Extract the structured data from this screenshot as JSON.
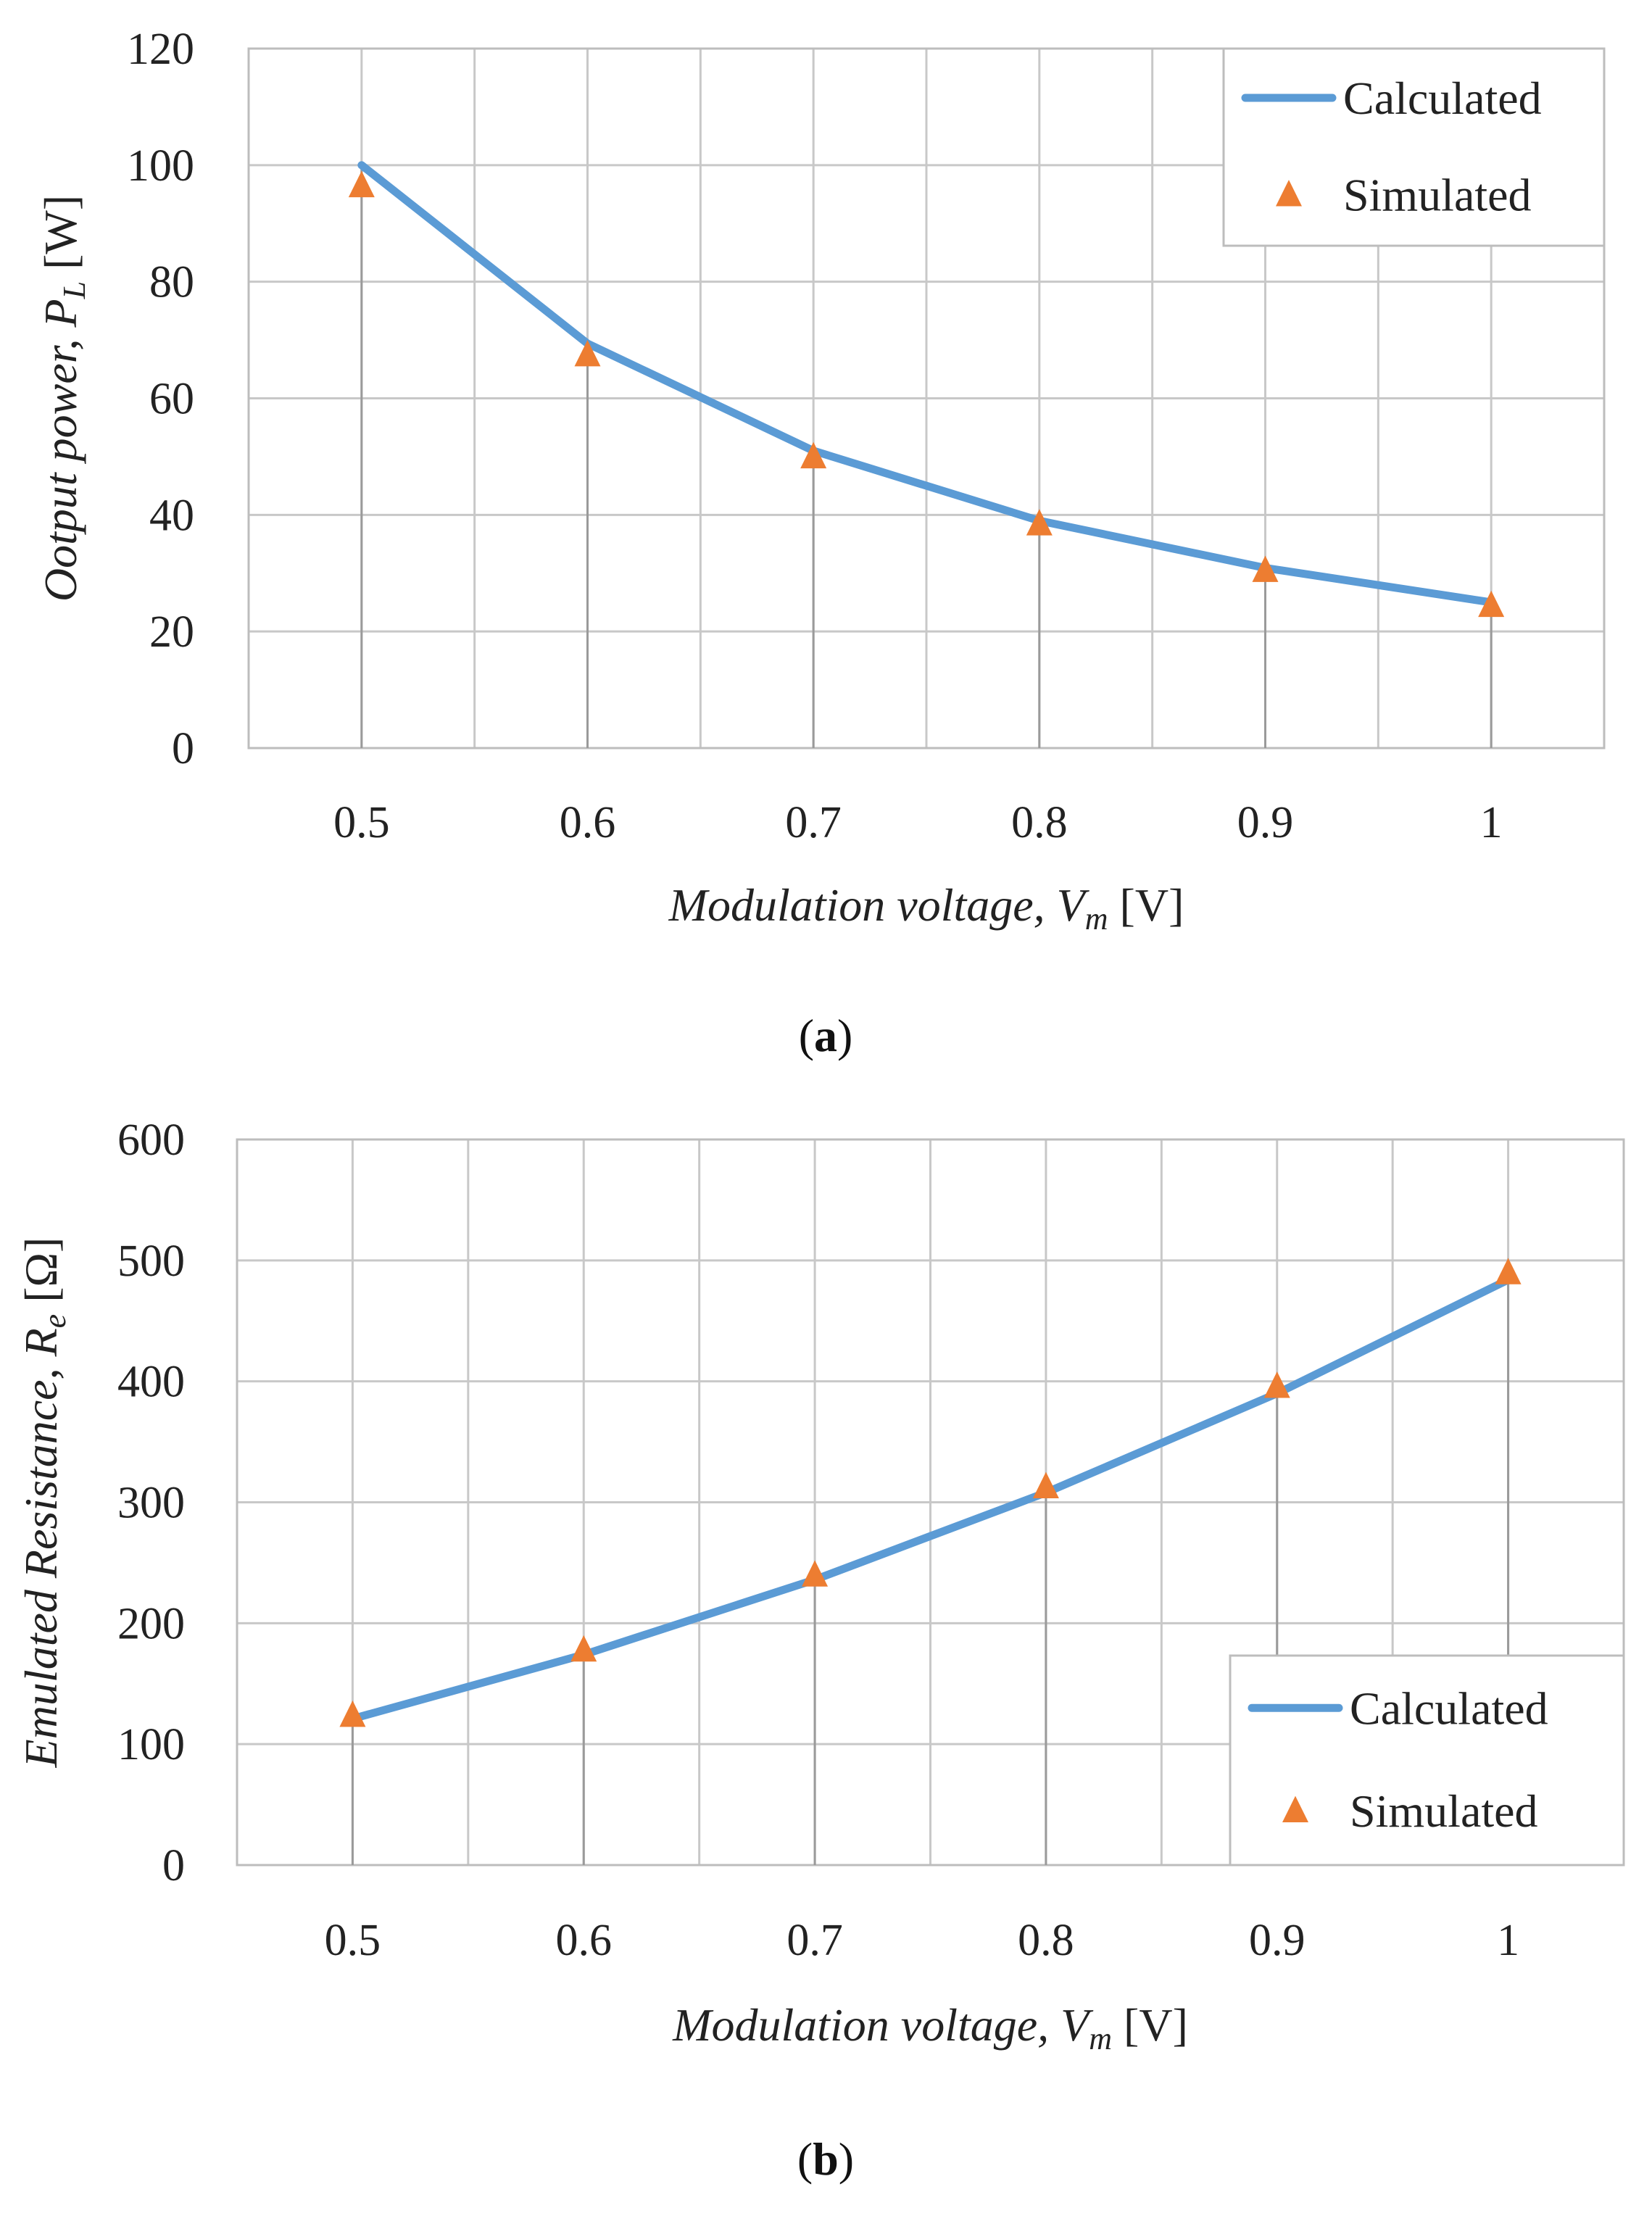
{
  "colors": {
    "calculated": "#5b9bd5",
    "simulated": "#ed7d31"
  },
  "chart_data": [
    {
      "type": "line",
      "panel_label": "a",
      "xlabel": {
        "main": "Modulation voltage, V",
        "sub": "m",
        "unit": " [V]"
      },
      "ylabel": {
        "main": "Ootput power,  P",
        "sub": "L",
        "unit": " [W]"
      },
      "categories": [
        "0.5",
        "0.6",
        "0.7",
        "0.8",
        "0.9",
        "1"
      ],
      "x": [
        0.5,
        0.6,
        0.7,
        0.8,
        0.9,
        1.0
      ],
      "ylim": [
        0,
        120
      ],
      "yticks": [
        0,
        20,
        40,
        60,
        80,
        100,
        120
      ],
      "grid": true,
      "legend_position": "top-right",
      "series": [
        {
          "name": "Calculated",
          "style": "line",
          "values": [
            100,
            69.4,
            51,
            39,
            30.9,
            25
          ]
        },
        {
          "name": "Simulated",
          "style": "triangle-markers",
          "values": [
            96.5,
            67.5,
            50,
            38.5,
            30.5,
            24.5
          ]
        }
      ]
    },
    {
      "type": "line",
      "panel_label": "b",
      "xlabel": {
        "main": "Modulation voltage, V",
        "sub": "m",
        "unit": " [V]"
      },
      "ylabel": {
        "main": "Emulated Resistance, R",
        "sub": "e",
        "unit": " [Ω]"
      },
      "categories": [
        "0.5",
        "0.6",
        "0.7",
        "0.8",
        "0.9",
        "1"
      ],
      "x": [
        0.5,
        0.6,
        0.7,
        0.8,
        0.9,
        1.0
      ],
      "ylim": [
        0,
        600
      ],
      "yticks": [
        0,
        100,
        200,
        300,
        400,
        500,
        600
      ],
      "grid": true,
      "legend_position": "bottom-right",
      "series": [
        {
          "name": "Calculated",
          "style": "line",
          "values": [
            121,
            174,
            236,
            308,
            390,
            484
          ]
        },
        {
          "name": "Simulated",
          "style": "triangle-markers",
          "values": [
            124,
            178,
            240,
            313,
            396,
            490
          ]
        }
      ]
    }
  ]
}
